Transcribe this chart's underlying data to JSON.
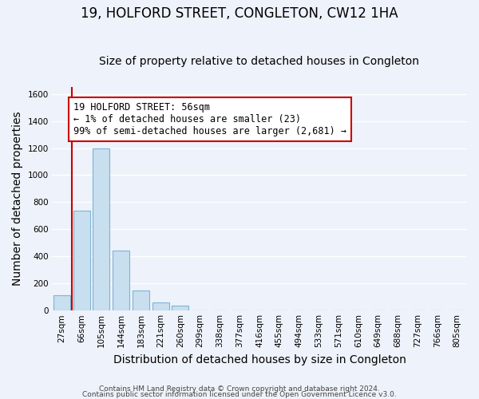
{
  "title": "19, HOLFORD STREET, CONGLETON, CW12 1HA",
  "subtitle": "Size of property relative to detached houses in Congleton",
  "xlabel": "Distribution of detached houses by size in Congleton",
  "ylabel": "Number of detached properties",
  "bar_labels": [
    "27sqm",
    "66sqm",
    "105sqm",
    "144sqm",
    "183sqm",
    "221sqm",
    "260sqm",
    "299sqm",
    "338sqm",
    "377sqm",
    "416sqm",
    "455sqm",
    "494sqm",
    "533sqm",
    "571sqm",
    "610sqm",
    "649sqm",
    "688sqm",
    "727sqm",
    "766sqm",
    "805sqm"
  ],
  "bar_values": [
    110,
    735,
    1200,
    440,
    145,
    60,
    35,
    0,
    0,
    0,
    0,
    0,
    0,
    0,
    0,
    0,
    0,
    0,
    0,
    0,
    0
  ],
  "bar_color": "#c8dff0",
  "bar_edge_color": "#7fb3d3",
  "annotation_title": "19 HOLFORD STREET: 56sqm",
  "annotation_line1": "← 1% of detached houses are smaller (23)",
  "annotation_line2": "99% of semi-detached houses are larger (2,681) →",
  "annotation_box_facecolor": "#ffffff",
  "annotation_box_edgecolor": "#cc0000",
  "vline_color": "#cc0000",
  "footer1": "Contains HM Land Registry data © Crown copyright and database right 2024.",
  "footer2": "Contains public sector information licensed under the Open Government Licence v3.0.",
  "background_color": "#eef2fa",
  "grid_color": "#ffffff",
  "ylim": [
    0,
    1650
  ],
  "yticks": [
    0,
    200,
    400,
    600,
    800,
    1000,
    1200,
    1400,
    1600
  ],
  "title_fontsize": 12,
  "subtitle_fontsize": 10,
  "axis_label_fontsize": 10,
  "tick_fontsize": 7.5,
  "annot_fontsize": 8.5,
  "footer_fontsize": 6.5
}
